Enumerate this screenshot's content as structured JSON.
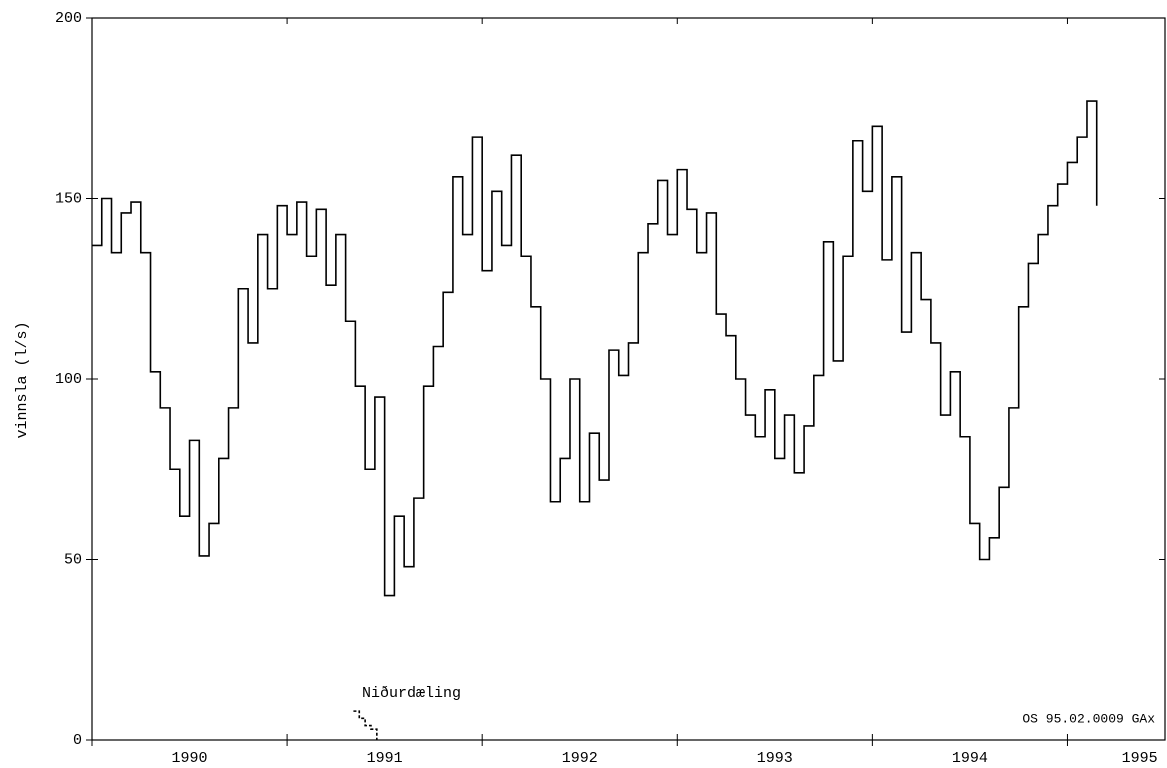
{
  "chart_data": {
    "type": "step",
    "ylabel": "vinnsla (l/s)",
    "annotations": [
      "Niðurdæling",
      "OS 95.02.0009 GAx"
    ],
    "xlim": [
      1990,
      1995.5
    ],
    "xticks": [
      1990,
      1991,
      1992,
      1993,
      1994,
      1995
    ],
    "xlabels": [
      {
        "value": 1990.5,
        "label": "1990"
      },
      {
        "value": 1991.5,
        "label": "1991"
      },
      {
        "value": 1992.5,
        "label": "1992"
      },
      {
        "value": 1993.5,
        "label": "1993"
      },
      {
        "value": 1994.5,
        "label": "1994"
      },
      {
        "value": 1995.37,
        "label": "1995"
      }
    ],
    "ylim": [
      0,
      200
    ],
    "yticks": [
      0,
      50,
      100,
      150,
      200
    ],
    "series": [
      {
        "name": "vinnsla",
        "color": "#000000",
        "dashed": false,
        "x": [
          1990,
          1990.05,
          1990.1,
          1990.15,
          1990.2,
          1990.25,
          1990.3,
          1990.35,
          1990.4,
          1990.45,
          1990.5,
          1990.55,
          1990.6,
          1990.65,
          1990.7,
          1990.75,
          1990.8,
          1990.85,
          1990.9,
          1990.95,
          1991,
          1991.05,
          1991.1,
          1991.15,
          1991.2,
          1991.25,
          1991.3,
          1991.35,
          1991.4,
          1991.45,
          1991.5,
          1991.55,
          1991.6,
          1991.65,
          1991.7,
          1991.75,
          1991.8,
          1991.85,
          1991.9,
          1991.95,
          1992,
          1992.05,
          1992.1,
          1992.15,
          1992.2,
          1992.25,
          1992.3,
          1992.35,
          1992.4,
          1992.45,
          1992.5,
          1992.55,
          1992.6,
          1992.65,
          1992.7,
          1992.75,
          1992.8,
          1992.85,
          1992.9,
          1992.95,
          1993,
          1993.05,
          1993.1,
          1993.15,
          1993.2,
          1993.25,
          1993.3,
          1993.35,
          1993.4,
          1993.45,
          1993.5,
          1993.55,
          1993.6,
          1993.65,
          1993.7,
          1993.75,
          1993.8,
          1993.85,
          1993.9,
          1993.95,
          1994,
          1994.05,
          1994.1,
          1994.15,
          1994.2,
          1994.25,
          1994.3,
          1994.35,
          1994.4,
          1994.45,
          1994.5,
          1994.55,
          1994.6,
          1994.65,
          1994.7,
          1994.75,
          1994.8,
          1994.85,
          1994.9,
          1994.95,
          1995,
          1995.05,
          1995.1,
          1995.15
        ],
        "values": [
          137,
          150,
          135,
          146,
          149,
          135,
          102,
          92,
          75,
          62,
          83,
          51,
          60,
          78,
          92,
          125,
          110,
          140,
          125,
          148,
          140,
          149,
          134,
          147,
          126,
          140,
          116,
          98,
          75,
          95,
          40,
          62,
          48,
          67,
          98,
          109,
          124,
          156,
          140,
          167,
          130,
          152,
          137,
          162,
          134,
          120,
          100,
          66,
          78,
          100,
          66,
          85,
          72,
          108,
          101,
          110,
          135,
          143,
          155,
          140,
          158,
          147,
          135,
          146,
          118,
          112,
          100,
          90,
          84,
          97,
          78,
          90,
          74,
          87,
          101,
          138,
          105,
          134,
          166,
          152,
          170,
          133,
          156,
          113,
          135,
          122,
          110,
          90,
          102,
          84,
          60,
          50,
          56,
          70,
          92,
          120,
          132,
          140,
          148,
          154,
          160,
          167,
          177,
          148
        ]
      },
      {
        "name": "Niðurdæling",
        "color": "#000000",
        "dashed": true,
        "x": [
          1991.34,
          1991.37,
          1991.4,
          1991.43,
          1991.46
        ],
        "values": [
          8,
          6,
          4,
          3,
          0
        ]
      }
    ]
  }
}
